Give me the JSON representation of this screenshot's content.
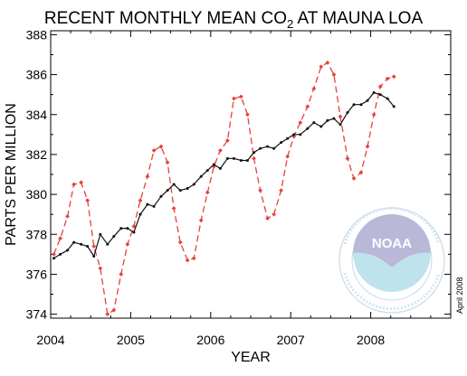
{
  "chart_data": {
    "type": "line",
    "title": {
      "prefix": "RECENT MONTHLY MEAN CO",
      "subscript": "2",
      "suffix": " AT MAUNA LOA"
    },
    "xlabel": "YEAR",
    "ylabel": "PARTS PER MILLION",
    "xlim": [
      2004.0,
      2009.0
    ],
    "ylim": [
      373.8,
      388.2
    ],
    "x_ticks": [
      2004,
      2005,
      2006,
      2007,
      2008
    ],
    "x_tick_labels": [
      "2004",
      "2005",
      "2006",
      "2007",
      "2008"
    ],
    "y_ticks": [
      374,
      376,
      378,
      380,
      382,
      384,
      386,
      388
    ],
    "y_tick_labels": [
      "374",
      "376",
      "378",
      "380",
      "382",
      "384",
      "386",
      "388"
    ],
    "grid": false,
    "annotations": [
      {
        "text": "April 2008",
        "placement": "right edge, bottom, rotated vertical"
      }
    ],
    "logo": {
      "name": "noaa-logo",
      "text": "NOAA",
      "ring_text": "NATIONAL OCEANIC AND ATMOSPHERIC ADMINISTRATION · U.S. DEPARTMENT OF COMMERCE"
    },
    "series": [
      {
        "style": "dashed",
        "color": "#e8413a",
        "marker": "diamond",
        "x": [
          2004.04,
          2004.12,
          2004.21,
          2004.29,
          2004.38,
          2004.46,
          2004.54,
          2004.62,
          2004.71,
          2004.79,
          2004.88,
          2004.96,
          2005.04,
          2005.12,
          2005.21,
          2005.29,
          2005.38,
          2005.46,
          2005.54,
          2005.62,
          2005.71,
          2005.79,
          2005.88,
          2005.96,
          2006.04,
          2006.12,
          2006.21,
          2006.29,
          2006.38,
          2006.46,
          2006.54,
          2006.62,
          2006.71,
          2006.79,
          2006.88,
          2006.96,
          2007.04,
          2007.12,
          2007.21,
          2007.29,
          2007.38,
          2007.46,
          2007.54,
          2007.62,
          2007.71,
          2007.79,
          2007.88,
          2007.96,
          2008.04,
          2008.12,
          2008.21,
          2008.29
        ],
        "y": [
          377.0,
          377.8,
          378.9,
          380.5,
          380.6,
          379.7,
          377.4,
          376.3,
          374.0,
          374.2,
          376.0,
          377.5,
          378.4,
          379.7,
          380.9,
          382.2,
          382.4,
          381.6,
          379.3,
          377.6,
          376.7,
          376.8,
          378.7,
          380.1,
          381.4,
          382.2,
          382.7,
          384.8,
          384.9,
          384.0,
          381.8,
          380.2,
          378.8,
          379.0,
          380.2,
          381.9,
          382.9,
          383.6,
          384.4,
          385.3,
          386.4,
          386.6,
          386.0,
          383.9,
          381.8,
          380.8,
          381.1,
          382.4,
          384.0,
          385.4,
          385.8,
          385.9
        ]
      },
      {
        "style": "solid",
        "color": "#111111",
        "marker": "dot",
        "x": [
          2004.04,
          2004.12,
          2004.21,
          2004.29,
          2004.38,
          2004.46,
          2004.54,
          2004.62,
          2004.71,
          2004.79,
          2004.88,
          2004.96,
          2005.04,
          2005.12,
          2005.21,
          2005.29,
          2005.38,
          2005.46,
          2005.54,
          2005.62,
          2005.71,
          2005.79,
          2005.88,
          2005.96,
          2006.04,
          2006.12,
          2006.21,
          2006.29,
          2006.38,
          2006.46,
          2006.54,
          2006.62,
          2006.71,
          2006.79,
          2006.88,
          2006.96,
          2007.04,
          2007.12,
          2007.21,
          2007.29,
          2007.38,
          2007.46,
          2007.54,
          2007.62,
          2007.71,
          2007.79,
          2007.88,
          2007.96,
          2008.04,
          2008.12,
          2008.21,
          2008.29
        ],
        "y": [
          376.8,
          377.0,
          377.2,
          377.6,
          377.5,
          377.4,
          376.9,
          378.0,
          377.5,
          377.9,
          378.3,
          378.3,
          378.1,
          379.0,
          379.5,
          379.4,
          379.9,
          380.2,
          380.5,
          380.2,
          380.3,
          380.5,
          380.9,
          381.2,
          381.5,
          381.3,
          381.8,
          381.8,
          381.7,
          381.7,
          382.1,
          382.3,
          382.4,
          382.3,
          382.6,
          382.8,
          383.0,
          383.0,
          383.3,
          383.6,
          383.4,
          383.7,
          383.8,
          383.5,
          384.1,
          384.5,
          384.5,
          384.7,
          385.1,
          385.0,
          384.8,
          384.4
        ]
      }
    ]
  }
}
